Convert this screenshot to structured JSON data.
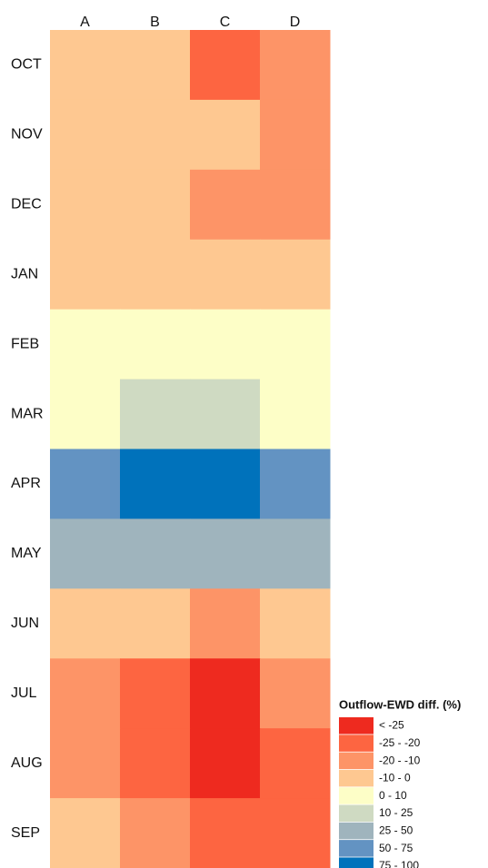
{
  "chart_data": {
    "type": "heatmap",
    "columns": [
      "A",
      "B",
      "C",
      "D"
    ],
    "rows": [
      "OCT",
      "NOV",
      "DEC",
      "JAN",
      "FEB",
      "MAR",
      "APR",
      "MAY",
      "JUN",
      "JUL",
      "AUG",
      "SEP"
    ],
    "values": [
      [
        3,
        3,
        1,
        2
      ],
      [
        3,
        3,
        3,
        2
      ],
      [
        3,
        3,
        2,
        2
      ],
      [
        3,
        3,
        3,
        3
      ],
      [
        4,
        4,
        4,
        4
      ],
      [
        4,
        5,
        5,
        4
      ],
      [
        7,
        8,
        8,
        7
      ],
      [
        6,
        6,
        6,
        6
      ],
      [
        3,
        3,
        2,
        3
      ],
      [
        2,
        1,
        0,
        2
      ],
      [
        2,
        1,
        0,
        1
      ],
      [
        3,
        2,
        1,
        1
      ]
    ],
    "legend_title": "Outflow-EWD diff. (%)",
    "legend_bins": [
      "< -25",
      "-25 - -20",
      "-20 - -10",
      "-10 - 0",
      "0 - 10",
      "10 - 25",
      "25 - 50",
      "50 - 75",
      "75 - 100"
    ],
    "colors": [
      "#ee2a1f",
      "#fd6541",
      "#fd9467",
      "#fec891",
      "#fdfec7",
      "#cfdac2",
      "#9fb4bd",
      "#6393c2",
      "#0072bb"
    ]
  }
}
